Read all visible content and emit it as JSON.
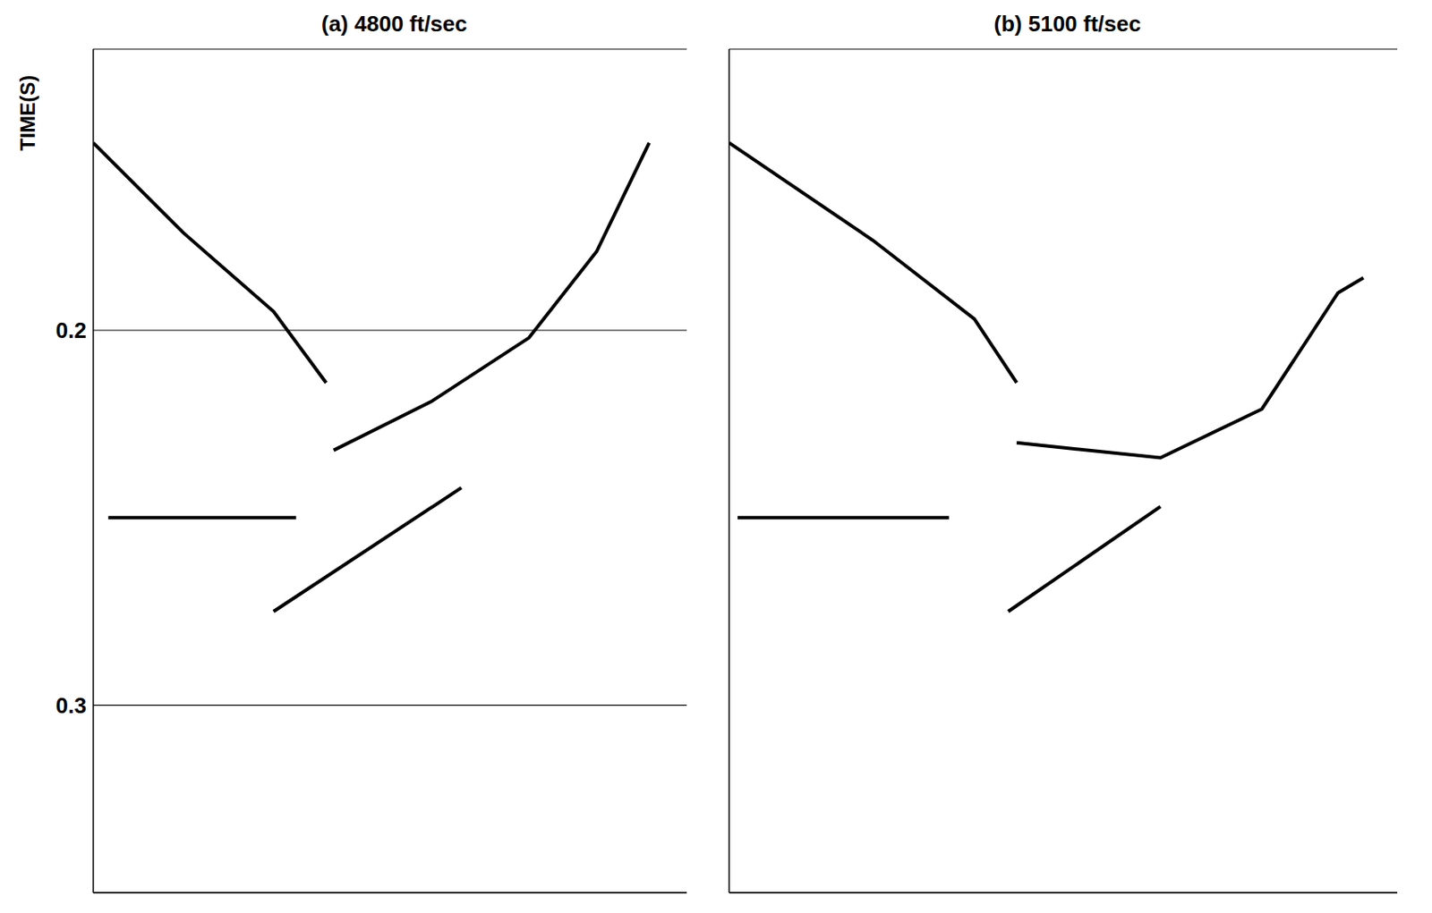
{
  "chart_data": [
    {
      "type": "line",
      "title": "(a) 4800 ft/sec",
      "y_label": "TIME(S)",
      "xlim": [
        1,
        80
      ],
      "ylim": [
        0.125,
        0.35
      ],
      "yticks": [
        0.2,
        0.3
      ],
      "grid": true,
      "tick_labels": "y",
      "series": [
        {
          "color": "#000000",
          "x": [
            1,
            13,
            25,
            32
          ],
          "values": [
            0.15,
            0.174,
            0.195,
            0.214
          ]
        },
        {
          "color": "#000000",
          "x": [
            33,
            46,
            59,
            68,
            75
          ],
          "values": [
            0.232,
            0.219,
            0.202,
            0.179,
            0.15
          ]
        },
        {
          "color": "#000000",
          "x": [
            25,
            50
          ],
          "values": [
            0.275,
            0.242
          ]
        },
        {
          "color": "#000000",
          "x": [
            3,
            28
          ],
          "values": [
            0.25,
            0.25
          ]
        }
      ]
    },
    {
      "type": "line",
      "title": "(b) 5100 ft/sec",
      "xlim": [
        1,
        80
      ],
      "ylim": [
        0.125,
        0.35
      ],
      "yticks": [
        0.2,
        0.3
      ],
      "grid": true,
      "tick_labels": false,
      "series": [
        {
          "color": "#000000",
          "x": [
            1,
            18,
            30,
            35
          ],
          "values": [
            0.15,
            0.176,
            0.197,
            0.214
          ]
        },
        {
          "color": "#000000",
          "x": [
            35,
            52,
            64,
            73,
            76
          ],
          "values": [
            0.23,
            0.234,
            0.221,
            0.19,
            0.186
          ]
        },
        {
          "color": "#000000",
          "x": [
            34,
            52
          ],
          "values": [
            0.275,
            0.247
          ]
        },
        {
          "color": "#000000",
          "x": [
            2,
            27
          ],
          "values": [
            0.25,
            0.25
          ]
        }
      ]
    }
  ]
}
